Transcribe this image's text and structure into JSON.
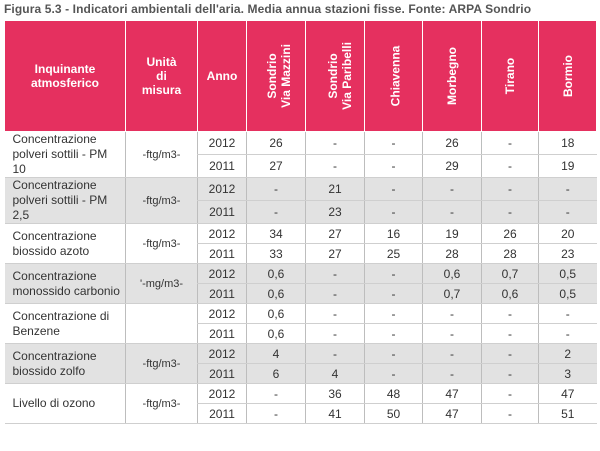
{
  "caption": "Figura 5.3 - Indicatori ambientali dell'aria. Media annua stazioni fisse. Fonte: ARPA Sondrio",
  "headers": {
    "pollutant": "Inquinante atmosferico",
    "unit": "Unità di misura",
    "year": "Anno",
    "stations": [
      {
        "line1": "Sondrio",
        "line2": "Via Mazzini"
      },
      {
        "line1": "Sondrio",
        "line2": "Via Paribelli"
      },
      {
        "line1": "Chiavenna",
        "line2": ""
      },
      {
        "line1": "Morbegno",
        "line2": ""
      },
      {
        "line1": "Tirano",
        "line2": ""
      },
      {
        "line1": "Bormio",
        "line2": ""
      }
    ]
  },
  "rows": [
    {
      "pollutant": "Concentrazione polveri sottili - PM 10",
      "unit": "-ftg/m3-",
      "years": [
        {
          "year": "2012",
          "values": [
            "26",
            "-",
            "-",
            "26",
            "-",
            "18"
          ]
        },
        {
          "year": "2011",
          "values": [
            "27",
            "-",
            "-",
            "29",
            "-",
            "19"
          ]
        }
      ]
    },
    {
      "pollutant": "Concentrazione polveri sottili - PM 2,5",
      "unit": "-ftg/m3-",
      "years": [
        {
          "year": "2012",
          "values": [
            "-",
            "21",
            "-",
            "-",
            "-",
            "-"
          ]
        },
        {
          "year": "2011",
          "values": [
            "-",
            "23",
            "-",
            "-",
            "-",
            "-"
          ]
        }
      ]
    },
    {
      "pollutant": "Concentrazione biossido azoto",
      "unit": "-ftg/m3-",
      "years": [
        {
          "year": "2012",
          "values": [
            "34",
            "27",
            "16",
            "19",
            "26",
            "20"
          ]
        },
        {
          "year": "2011",
          "values": [
            "33",
            "27",
            "25",
            "28",
            "28",
            "23"
          ]
        }
      ]
    },
    {
      "pollutant": "Concentrazione monossido carbonio",
      "unit": "'-mg/m3-",
      "years": [
        {
          "year": "2012",
          "values": [
            "0,6",
            "-",
            "-",
            "0,6",
            "0,7",
            "0,5"
          ]
        },
        {
          "year": "2011",
          "values": [
            "0,6",
            "-",
            "-",
            "0,7",
            "0,6",
            "0,5"
          ]
        }
      ]
    },
    {
      "pollutant": "Concentrazione di Benzene",
      "unit": "",
      "years": [
        {
          "year": "2012",
          "values": [
            "0,6",
            "-",
            "-",
            "-",
            "-",
            "-"
          ]
        },
        {
          "year": "2011",
          "values": [
            "0,6",
            "-",
            "-",
            "-",
            "-",
            "-"
          ]
        }
      ]
    },
    {
      "pollutant": "Concentrazione biossido zolfo",
      "unit": "-ftg/m3-",
      "years": [
        {
          "year": "2012",
          "values": [
            "4",
            "-",
            "-",
            "-",
            "-",
            "2"
          ]
        },
        {
          "year": "2011",
          "values": [
            "6",
            "4",
            "-",
            "-",
            "-",
            "3"
          ]
        }
      ]
    },
    {
      "pollutant": "Livello di ozono",
      "unit": "-ftg/m3-",
      "years": [
        {
          "year": "2012",
          "values": [
            "-",
            "36",
            "48",
            "47",
            "-",
            "47"
          ]
        },
        {
          "year": "2011",
          "values": [
            "-",
            "41",
            "50",
            "47",
            "-",
            "51"
          ]
        }
      ]
    }
  ]
}
